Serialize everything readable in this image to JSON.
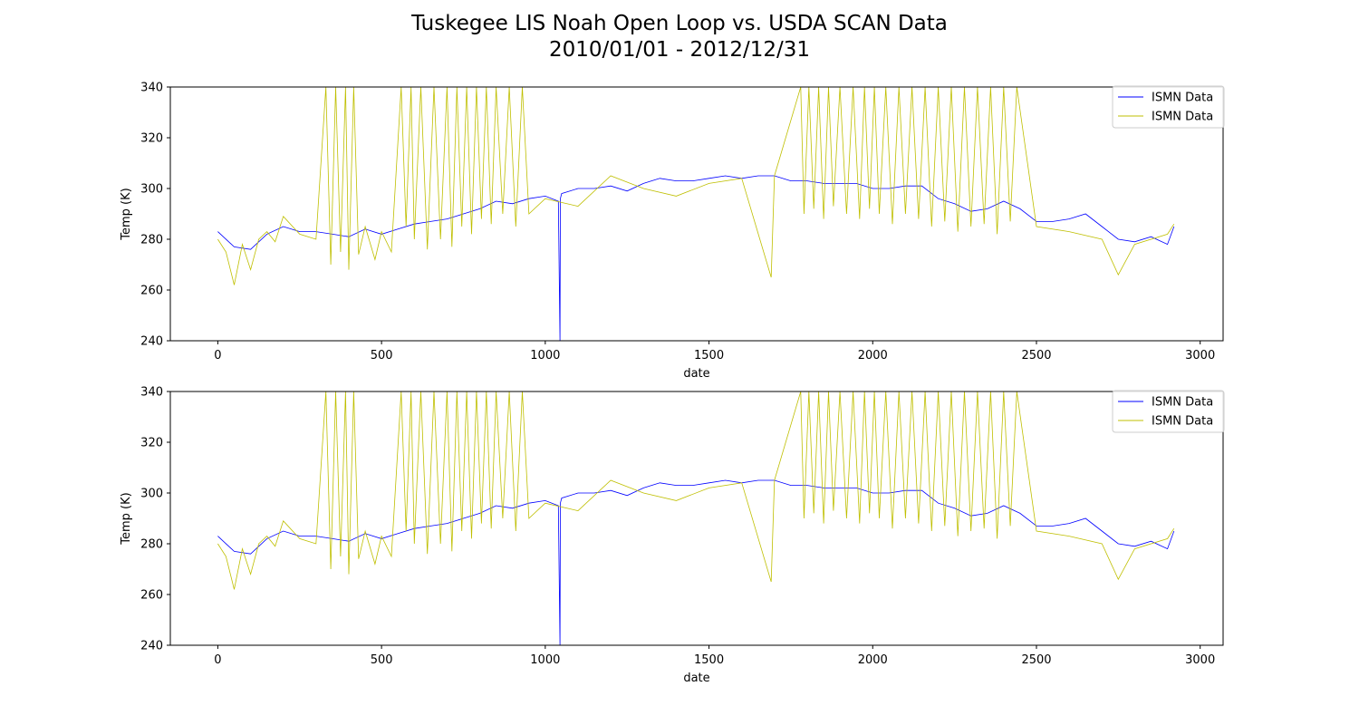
{
  "figure": {
    "title_line1": "Tuskegee LIS Noah Open Loop vs. USDA SCAN Data",
    "title_line2": "2010/01/01 - 2012/12/31"
  },
  "colors": {
    "model": "#0000ff",
    "observed": "#bfbf00"
  },
  "chart_data": [
    {
      "type": "line",
      "title": "",
      "xlabel": "date",
      "ylabel": "Temp (K)",
      "xlim": [
        -145,
        3070
      ],
      "ylim": [
        240,
        340
      ],
      "xticks": [
        0,
        500,
        1000,
        1500,
        2000,
        2500,
        3000
      ],
      "yticks": [
        240,
        260,
        280,
        300,
        320,
        340
      ],
      "grid": false,
      "legend_position": "top-right",
      "series": [
        {
          "name": "ISMN Data",
          "color": "#0000ff",
          "x": [
            0,
            50,
            100,
            150,
            200,
            250,
            300,
            350,
            400,
            450,
            500,
            550,
            600,
            650,
            700,
            750,
            800,
            850,
            900,
            950,
            1000,
            1040,
            1045,
            1046,
            1050,
            1100,
            1150,
            1200,
            1250,
            1300,
            1350,
            1400,
            1450,
            1500,
            1550,
            1600,
            1650,
            1700,
            1750,
            1800,
            1850,
            1900,
            1950,
            2000,
            2050,
            2100,
            2150,
            2200,
            2250,
            2300,
            2350,
            2400,
            2450,
            2500,
            2550,
            2600,
            2650,
            2700,
            2750,
            2800,
            2850,
            2900,
            2920
          ],
          "y": [
            283,
            277,
            276,
            282,
            285,
            283,
            283,
            282,
            281,
            284,
            282,
            284,
            286,
            287,
            288,
            290,
            292,
            295,
            294,
            296,
            297,
            295,
            240,
            296,
            298,
            300,
            300,
            301,
            299,
            302,
            304,
            303,
            303,
            304,
            305,
            304,
            305,
            305,
            303,
            303,
            302,
            302,
            302,
            300,
            300,
            301,
            301,
            296,
            294,
            291,
            292,
            295,
            292,
            287,
            287,
            288,
            290,
            285,
            280,
            279,
            281,
            278,
            285
          ]
        },
        {
          "name": "ISMN Data",
          "color": "#bfbf00",
          "x": [
            0,
            25,
            50,
            75,
            100,
            125,
            150,
            175,
            200,
            250,
            300,
            330,
            345,
            360,
            375,
            390,
            400,
            415,
            430,
            450,
            480,
            500,
            530,
            560,
            575,
            590,
            600,
            620,
            640,
            660,
            680,
            700,
            715,
            730,
            745,
            760,
            775,
            790,
            805,
            820,
            835,
            850,
            870,
            890,
            910,
            930,
            950,
            1000,
            1100,
            1200,
            1300,
            1400,
            1500,
            1600,
            1690,
            1700,
            1780,
            1790,
            1805,
            1820,
            1835,
            1850,
            1865,
            1880,
            1900,
            1920,
            1940,
            1960,
            1975,
            1990,
            2005,
            2020,
            2040,
            2060,
            2080,
            2100,
            2120,
            2140,
            2160,
            2180,
            2200,
            2220,
            2240,
            2260,
            2280,
            2300,
            2320,
            2340,
            2360,
            2380,
            2400,
            2420,
            2440,
            2500,
            2600,
            2700,
            2750,
            2800,
            2900,
            2920
          ],
          "y": [
            280,
            275,
            262,
            278,
            268,
            280,
            283,
            279,
            289,
            282,
            280,
            340,
            270,
            340,
            275,
            340,
            268,
            340,
            274,
            285,
            272,
            283,
            275,
            340,
            285,
            340,
            280,
            340,
            276,
            340,
            280,
            340,
            277,
            340,
            285,
            340,
            282,
            340,
            288,
            340,
            286,
            340,
            290,
            340,
            285,
            340,
            290,
            296,
            293,
            305,
            300,
            297,
            302,
            304,
            265,
            305,
            340,
            290,
            340,
            292,
            340,
            288,
            340,
            293,
            340,
            290,
            340,
            288,
            340,
            292,
            340,
            290,
            340,
            286,
            340,
            290,
            340,
            288,
            340,
            285,
            340,
            287,
            340,
            283,
            340,
            285,
            340,
            286,
            340,
            282,
            340,
            287,
            340,
            285,
            283,
            280,
            266,
            278,
            282,
            286
          ]
        }
      ]
    },
    {
      "type": "line",
      "title": "",
      "xlabel": "date",
      "ylabel": "Temp (K)",
      "xlim": [
        -145,
        3070
      ],
      "ylim": [
        240,
        340
      ],
      "xticks": [
        0,
        500,
        1000,
        1500,
        2000,
        2500,
        3000
      ],
      "yticks": [
        240,
        260,
        280,
        300,
        320,
        340
      ],
      "grid": false,
      "legend_position": "top-right",
      "series": [
        {
          "name": "ISMN Data",
          "color": "#0000ff",
          "x": [
            0,
            50,
            100,
            150,
            200,
            250,
            300,
            350,
            400,
            450,
            500,
            550,
            600,
            650,
            700,
            750,
            800,
            850,
            900,
            950,
            1000,
            1040,
            1045,
            1046,
            1050,
            1100,
            1150,
            1200,
            1250,
            1300,
            1350,
            1400,
            1450,
            1500,
            1550,
            1600,
            1650,
            1700,
            1750,
            1800,
            1850,
            1900,
            1950,
            2000,
            2050,
            2100,
            2150,
            2200,
            2250,
            2300,
            2350,
            2400,
            2450,
            2500,
            2550,
            2600,
            2650,
            2700,
            2750,
            2800,
            2850,
            2900,
            2920
          ],
          "y": [
            283,
            277,
            276,
            282,
            285,
            283,
            283,
            282,
            281,
            284,
            282,
            284,
            286,
            287,
            288,
            290,
            292,
            295,
            294,
            296,
            297,
            295,
            240,
            296,
            298,
            300,
            300,
            301,
            299,
            302,
            304,
            303,
            303,
            304,
            305,
            304,
            305,
            305,
            303,
            303,
            302,
            302,
            302,
            300,
            300,
            301,
            301,
            296,
            294,
            291,
            292,
            295,
            292,
            287,
            287,
            288,
            290,
            285,
            280,
            279,
            281,
            278,
            285
          ]
        },
        {
          "name": "ISMN Data",
          "color": "#bfbf00",
          "x": [
            0,
            25,
            50,
            75,
            100,
            125,
            150,
            175,
            200,
            250,
            300,
            330,
            345,
            360,
            375,
            390,
            400,
            415,
            430,
            450,
            480,
            500,
            530,
            560,
            575,
            590,
            600,
            620,
            640,
            660,
            680,
            700,
            715,
            730,
            745,
            760,
            775,
            790,
            805,
            820,
            835,
            850,
            870,
            890,
            910,
            930,
            950,
            1000,
            1100,
            1200,
            1300,
            1400,
            1500,
            1600,
            1690,
            1700,
            1780,
            1790,
            1805,
            1820,
            1835,
            1850,
            1865,
            1880,
            1900,
            1920,
            1940,
            1960,
            1975,
            1990,
            2005,
            2020,
            2040,
            2060,
            2080,
            2100,
            2120,
            2140,
            2160,
            2180,
            2200,
            2220,
            2240,
            2260,
            2280,
            2300,
            2320,
            2340,
            2360,
            2380,
            2400,
            2420,
            2440,
            2500,
            2600,
            2700,
            2750,
            2800,
            2900,
            2920
          ],
          "y": [
            280,
            275,
            262,
            278,
            268,
            280,
            283,
            279,
            289,
            282,
            280,
            340,
            270,
            340,
            275,
            340,
            268,
            340,
            274,
            285,
            272,
            283,
            275,
            340,
            285,
            340,
            280,
            340,
            276,
            340,
            280,
            340,
            277,
            340,
            285,
            340,
            282,
            340,
            288,
            340,
            286,
            340,
            290,
            340,
            285,
            340,
            290,
            296,
            293,
            305,
            300,
            297,
            302,
            304,
            265,
            305,
            340,
            290,
            340,
            292,
            340,
            288,
            340,
            293,
            340,
            290,
            340,
            288,
            340,
            292,
            340,
            290,
            340,
            286,
            340,
            290,
            340,
            288,
            340,
            285,
            340,
            287,
            340,
            283,
            340,
            285,
            340,
            286,
            340,
            282,
            340,
            287,
            340,
            285,
            283,
            280,
            266,
            278,
            282,
            286
          ]
        }
      ]
    }
  ]
}
